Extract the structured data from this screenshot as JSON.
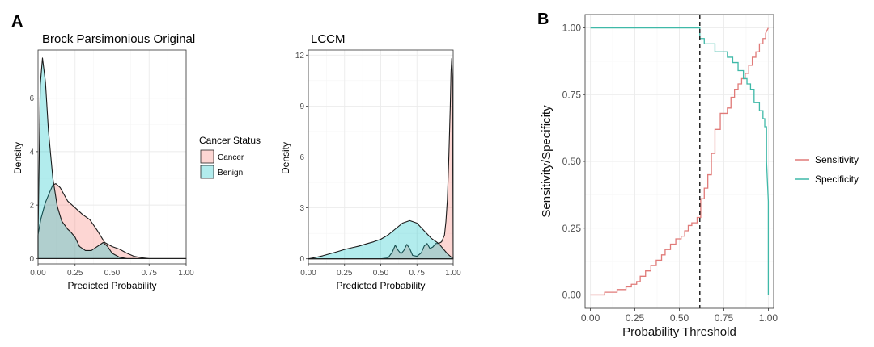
{
  "colors": {
    "cancer": "#f8766d",
    "benign": "#00bfc4",
    "sensitivity": "#e07a78",
    "specificity": "#3fb9a8",
    "grid_major": "#ebebeb",
    "grid_minor": "#f5f5f5",
    "panel_border": "#333333"
  },
  "figure": {
    "panel_a": "A",
    "panel_b": "B"
  },
  "chart_data": [
    {
      "type": "area",
      "id": "brock",
      "title": "Brock Parsimonious Original",
      "xlabel": "Predicted Probability",
      "ylabel": "Density",
      "xlim": [
        0,
        1
      ],
      "ylim": [
        -0.2,
        7.8
      ],
      "xticks": [
        0,
        0.25,
        0.5,
        0.75,
        1.0
      ],
      "xtick_labels": [
        "0.00",
        "0.25",
        "0.50",
        "0.75",
        "1.00"
      ],
      "yticks": [
        0,
        2,
        4,
        6
      ],
      "ytick_labels": [
        "0",
        "2",
        "4",
        "6"
      ],
      "series": [
        {
          "name": "Cancer",
          "x": [
            0.0,
            0.02,
            0.05,
            0.08,
            0.1,
            0.12,
            0.15,
            0.2,
            0.25,
            0.3,
            0.35,
            0.4,
            0.45,
            0.5,
            0.55,
            0.6,
            0.65,
            0.7,
            0.75,
            0.8,
            1.0
          ],
          "values": [
            0.9,
            1.5,
            2.1,
            2.5,
            2.75,
            2.8,
            2.65,
            2.15,
            1.9,
            1.65,
            1.45,
            1.05,
            0.6,
            0.45,
            0.35,
            0.2,
            0.08,
            0.03,
            0.0,
            0.0,
            0.0
          ]
        },
        {
          "name": "Benign",
          "x": [
            0.0,
            0.015,
            0.03,
            0.05,
            0.07,
            0.1,
            0.13,
            0.16,
            0.2,
            0.22,
            0.25,
            0.28,
            0.32,
            0.36,
            0.4,
            0.44,
            0.47,
            0.5,
            0.55,
            0.6,
            1.0
          ],
          "values": [
            0.8,
            6.5,
            7.5,
            6.6,
            4.8,
            3.0,
            1.95,
            1.4,
            1.1,
            1.0,
            0.8,
            0.45,
            0.3,
            0.3,
            0.45,
            0.6,
            0.45,
            0.2,
            0.05,
            0.0,
            0.0
          ]
        }
      ]
    },
    {
      "type": "area",
      "id": "lccm",
      "title": "LCCM",
      "xlabel": "Predicted Probability",
      "ylabel": "Density",
      "xlim": [
        0,
        1
      ],
      "ylim": [
        -0.3,
        12.3
      ],
      "xticks": [
        0,
        0.25,
        0.5,
        0.75,
        1.0
      ],
      "xtick_labels": [
        "0.00",
        "0.25",
        "0.50",
        "0.75",
        "1.00"
      ],
      "yticks": [
        0,
        3,
        6,
        9,
        12
      ],
      "ytick_labels": [
        "0",
        "3",
        "6",
        "9",
        "12"
      ],
      "series": [
        {
          "name": "Cancer",
          "x": [
            0.0,
            0.5,
            0.55,
            0.58,
            0.6,
            0.62,
            0.64,
            0.66,
            0.68,
            0.7,
            0.72,
            0.75,
            0.78,
            0.8,
            0.82,
            0.84,
            0.86,
            0.88,
            0.9,
            0.92,
            0.94,
            0.95,
            0.96,
            0.97,
            0.98,
            0.985,
            0.99,
            0.995,
            1.0
          ],
          "values": [
            0,
            0,
            0.05,
            0.4,
            0.8,
            0.5,
            0.3,
            0.5,
            0.85,
            0.6,
            0.2,
            0.15,
            0.35,
            0.75,
            0.9,
            0.6,
            0.7,
            0.9,
            0.9,
            1.0,
            1.4,
            2.2,
            3.5,
            6.0,
            9.0,
            11.0,
            11.8,
            10.5,
            0
          ]
        },
        {
          "name": "Benign",
          "x": [
            0.0,
            0.05,
            0.1,
            0.15,
            0.2,
            0.25,
            0.3,
            0.35,
            0.4,
            0.45,
            0.5,
            0.55,
            0.6,
            0.65,
            0.7,
            0.75,
            0.8,
            0.85,
            0.9,
            0.93,
            0.96,
            1.0
          ],
          "values": [
            0.0,
            0.08,
            0.18,
            0.3,
            0.42,
            0.55,
            0.65,
            0.75,
            0.88,
            1.0,
            1.15,
            1.4,
            1.75,
            2.1,
            2.25,
            2.1,
            1.65,
            1.2,
            0.9,
            0.6,
            0.3,
            0.0
          ]
        }
      ]
    },
    {
      "type": "line",
      "id": "roc_threshold",
      "xlabel": "Probability Threshold",
      "ylabel": "Sensitivity/Specificity",
      "xlim": [
        -0.03,
        1.03
      ],
      "ylim": [
        -0.05,
        1.05
      ],
      "xticks": [
        0,
        0.25,
        0.5,
        0.75,
        1.0
      ],
      "xtick_labels": [
        "0.00",
        "0.25",
        "0.50",
        "0.75",
        "1.00"
      ],
      "yticks": [
        0,
        0.25,
        0.5,
        0.75,
        1.0
      ],
      "ytick_labels": [
        "0.00",
        "0.25",
        "0.50",
        "0.75",
        "1.00"
      ],
      "threshold": 0.615,
      "series": [
        {
          "name": "Sensitivity",
          "x": [
            0.0,
            0.08,
            0.08,
            0.15,
            0.15,
            0.2,
            0.2,
            0.23,
            0.23,
            0.26,
            0.26,
            0.28,
            0.28,
            0.31,
            0.31,
            0.34,
            0.34,
            0.37,
            0.37,
            0.4,
            0.4,
            0.42,
            0.42,
            0.45,
            0.45,
            0.48,
            0.48,
            0.51,
            0.51,
            0.53,
            0.53,
            0.55,
            0.55,
            0.57,
            0.57,
            0.6,
            0.6,
            0.62,
            0.62,
            0.64,
            0.64,
            0.66,
            0.66,
            0.68,
            0.68,
            0.7,
            0.7,
            0.73,
            0.73,
            0.77,
            0.77,
            0.79,
            0.79,
            0.81,
            0.81,
            0.83,
            0.83,
            0.85,
            0.85,
            0.87,
            0.87,
            0.89,
            0.89,
            0.91,
            0.91,
            0.93,
            0.93,
            0.95,
            0.95,
            0.97,
            0.97,
            0.985,
            0.985,
            1.0
          ],
          "values": [
            0.0,
            0.0,
            0.01,
            0.01,
            0.02,
            0.02,
            0.03,
            0.03,
            0.04,
            0.04,
            0.05,
            0.05,
            0.07,
            0.07,
            0.09,
            0.09,
            0.11,
            0.11,
            0.13,
            0.13,
            0.15,
            0.15,
            0.17,
            0.17,
            0.19,
            0.19,
            0.21,
            0.21,
            0.22,
            0.22,
            0.24,
            0.24,
            0.26,
            0.26,
            0.27,
            0.27,
            0.29,
            0.29,
            0.36,
            0.36,
            0.4,
            0.4,
            0.45,
            0.45,
            0.53,
            0.53,
            0.62,
            0.62,
            0.68,
            0.68,
            0.7,
            0.7,
            0.74,
            0.74,
            0.77,
            0.77,
            0.79,
            0.79,
            0.81,
            0.81,
            0.83,
            0.83,
            0.86,
            0.86,
            0.89,
            0.89,
            0.91,
            0.91,
            0.94,
            0.94,
            0.96,
            0.96,
            0.98,
            1.0
          ]
        },
        {
          "name": "Specificity",
          "x": [
            0.0,
            0.615,
            0.615,
            0.64,
            0.64,
            0.7,
            0.7,
            0.77,
            0.77,
            0.8,
            0.8,
            0.83,
            0.83,
            0.86,
            0.86,
            0.88,
            0.88,
            0.9,
            0.9,
            0.92,
            0.92,
            0.95,
            0.95,
            0.97,
            0.97,
            0.98,
            0.98,
            0.99,
            0.99,
            1.0,
            1.0
          ],
          "values": [
            1.0,
            1.0,
            0.96,
            0.96,
            0.94,
            0.94,
            0.91,
            0.91,
            0.89,
            0.89,
            0.87,
            0.87,
            0.84,
            0.84,
            0.81,
            0.81,
            0.79,
            0.79,
            0.77,
            0.77,
            0.72,
            0.72,
            0.69,
            0.69,
            0.66,
            0.66,
            0.63,
            0.63,
            0.5,
            0.35,
            0.0
          ]
        }
      ]
    }
  ],
  "legend_cancer_status": {
    "title": "Cancer Status",
    "items": [
      "Cancer",
      "Benign"
    ]
  },
  "legend_roc": {
    "items": [
      "Sensitivity",
      "Specificity"
    ]
  }
}
